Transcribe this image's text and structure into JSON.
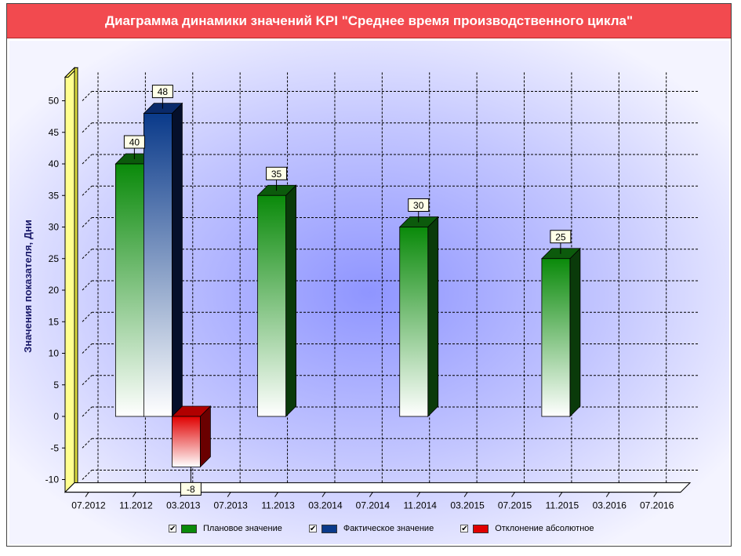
{
  "title": "Диаграмма динамики значений KPI \"Среднее время производственного цикла\"",
  "colors": {
    "title_bg": "#f24a4f",
    "plan": "#0a8a0a",
    "fact": "#0a3a8a",
    "deviation": "#e00000",
    "axis_wall": "#ffff80"
  },
  "chart_data": {
    "type": "bar",
    "ylabel": "Значения показателя, Дни",
    "xlabel": "",
    "ylim": [
      -12,
      53
    ],
    "yticks": [
      -10,
      -5,
      0,
      5,
      10,
      15,
      20,
      25,
      30,
      35,
      40,
      45,
      50
    ],
    "xticks": [
      "07.2012",
      "11.2012",
      "03.2013",
      "07.2013",
      "11.2013",
      "03.2014",
      "07.2014",
      "11.2014",
      "03.2015",
      "07.2015",
      "11.2015",
      "03.2016",
      "07.2016"
    ],
    "grid": true,
    "legend_position": "bottom",
    "series": [
      {
        "name": "Плановое значение",
        "points": [
          {
            "x": "11.2012",
            "y": 40
          },
          {
            "x": "11.2013",
            "y": 35
          },
          {
            "x": "11.2014",
            "y": 30
          },
          {
            "x": "11.2015",
            "y": 25
          }
        ]
      },
      {
        "name": "Фактическое значение",
        "points": [
          {
            "x": "11.2012",
            "y": 48
          }
        ]
      },
      {
        "name": "Отклонение абсолютное",
        "points": [
          {
            "x": "11.2012",
            "y": -8
          }
        ]
      }
    ]
  },
  "legend": [
    {
      "label": "Плановое значение",
      "checked": "✔",
      "color": "#0a8a0a"
    },
    {
      "label": "Фактическое значение",
      "checked": "✔",
      "color": "#0a3a8a"
    },
    {
      "label": "Отклонение абсолютное",
      "checked": "✔",
      "color": "#e00000"
    }
  ]
}
